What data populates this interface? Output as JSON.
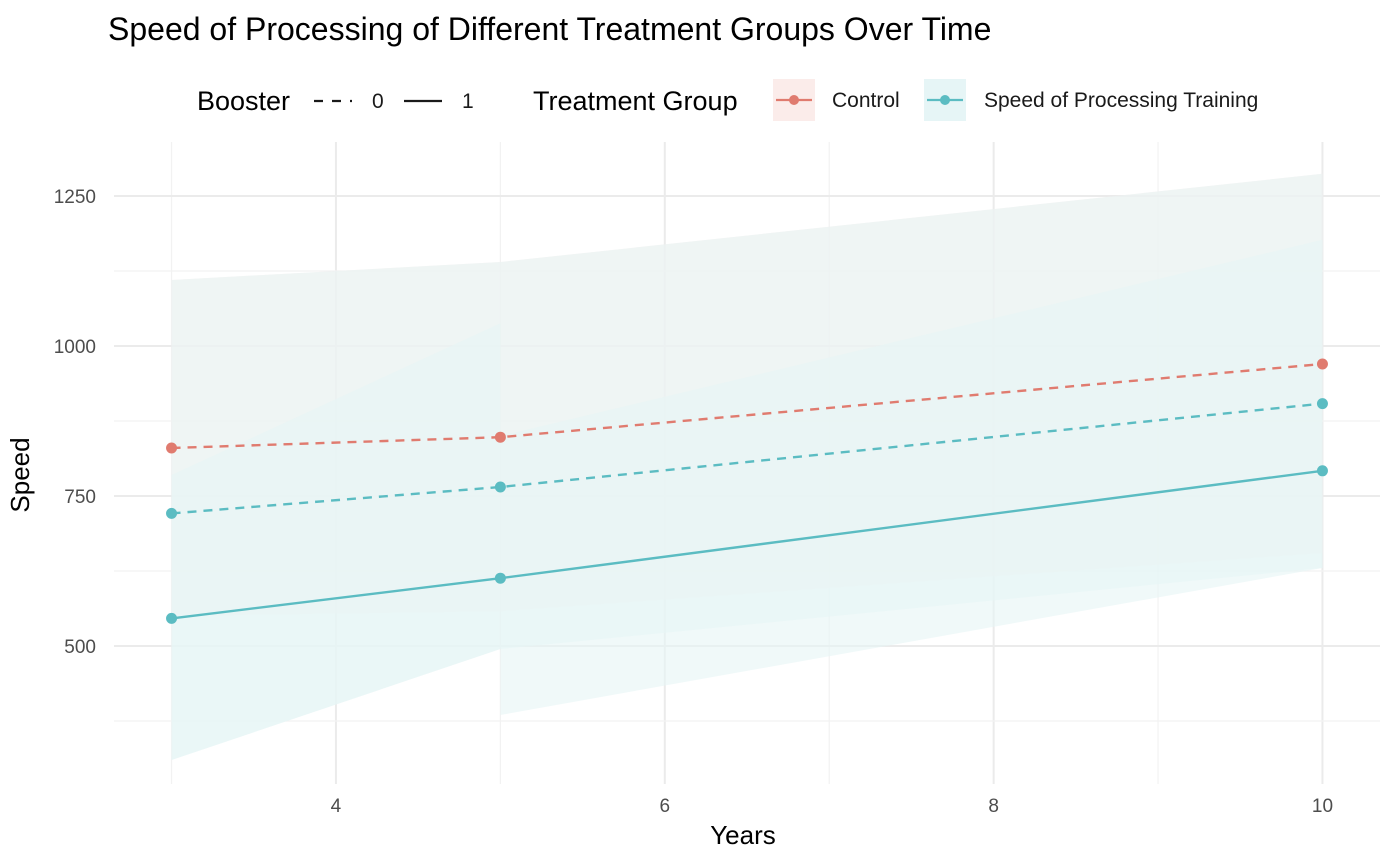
{
  "chart_data": {
    "type": "line",
    "title": "Speed of Processing of Different Treatment Groups Over Time",
    "xlabel": "Years",
    "ylabel": "Speed",
    "xlim": [
      2.65,
      10.35
    ],
    "ylim": [
      270,
      1340
    ],
    "x_ticks": [
      4,
      6,
      8,
      10
    ],
    "y_ticks": [
      500,
      750,
      1000,
      1250
    ],
    "grid": true,
    "legend_position": "top",
    "legend": {
      "booster_title": "Booster",
      "booster_items": [
        {
          "label": "0",
          "linetype": "dashed"
        },
        {
          "label": "1",
          "linetype": "solid"
        }
      ],
      "group_title": "Treatment Group",
      "group_items": [
        {
          "label": "Control",
          "color": "#E07B6F",
          "fill": "#FBECEA"
        },
        {
          "label": "Speed of Processing Training",
          "color": "#5BBCC2",
          "fill": "#E6F5F6"
        }
      ]
    },
    "series": [
      {
        "group": "Control",
        "booster": "0",
        "color": "#E07B6F",
        "x": [
          3,
          5,
          10
        ],
        "y": [
          830,
          848,
          970
        ]
      },
      {
        "group": "Speed of Processing Training",
        "booster": "0",
        "color": "#5BBCC2",
        "x": [
          3,
          5,
          10
        ],
        "y": [
          721,
          765,
          904
        ]
      },
      {
        "group": "Speed of Processing Training",
        "booster": "1",
        "color": "#5BBCC2",
        "x": [
          3,
          5,
          10
        ],
        "y": [
          546,
          613,
          792
        ]
      }
    ],
    "ribbons": [
      {
        "group": "Control",
        "booster": "0",
        "fill": "#FBECEA",
        "x": [
          3,
          5,
          10
        ],
        "upper": [
          1110,
          1140,
          1287
        ],
        "lower": [
          550,
          558,
          655
        ]
      },
      {
        "group": "Speed of Processing Training",
        "booster": "0",
        "fill": "#E6F5F6",
        "x": [
          3,
          5,
          10
        ],
        "upper": [
          1110,
          1140,
          1287
        ],
        "lower": [
          310,
          495,
          630
        ]
      },
      {
        "group": "Speed of Processing Training",
        "booster": "1",
        "fill": "#E6F5F6",
        "x": [
          5,
          10
        ],
        "upper": [
          850,
          1177
        ],
        "lower": [
          385,
          630
        ]
      },
      {
        "group": "Speed of Processing Training",
        "booster": "1",
        "fill": "#E6F5F6",
        "x": [
          3,
          5
        ],
        "upper": [
          785,
          1038
        ],
        "lower": [
          310,
          495
        ]
      }
    ]
  }
}
